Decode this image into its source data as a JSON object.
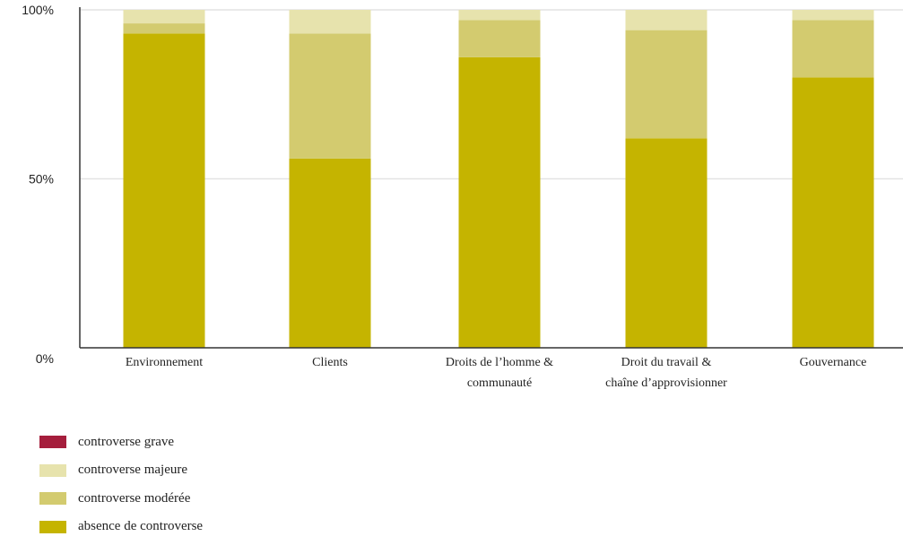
{
  "chart_data": {
    "type": "bar",
    "stacked": true,
    "percent": true,
    "categories": [
      [
        "Environnement"
      ],
      [
        "Clients"
      ],
      [
        "Droits de l’homme &",
        "communauté"
      ],
      [
        "Droit du travail &",
        "chaîne d’approvisionner"
      ],
      [
        "Gouvernance"
      ]
    ],
    "series": [
      {
        "name": "absence de controverse",
        "color": "#c5b400",
        "values": [
          93,
          56,
          86,
          62,
          80
        ]
      },
      {
        "name": "controverse modérée",
        "color": "#d3cb6f",
        "values": [
          3,
          37,
          11,
          32,
          17
        ]
      },
      {
        "name": "controverse majeure",
        "color": "#e7e3ad",
        "values": [
          4,
          7,
          3,
          6,
          3
        ]
      },
      {
        "name": "controverse grave",
        "color": "#a51e3c",
        "values": [
          0,
          0,
          0,
          0,
          0
        ]
      }
    ],
    "y_ticks": [
      "0%",
      "50%",
      "100%"
    ],
    "ylim": [
      0,
      100
    ],
    "grid": true,
    "legend_position": "bottom-left",
    "legend_order": [
      "controverse grave",
      "controverse majeure",
      "controverse modérée",
      "absence de controverse"
    ]
  }
}
